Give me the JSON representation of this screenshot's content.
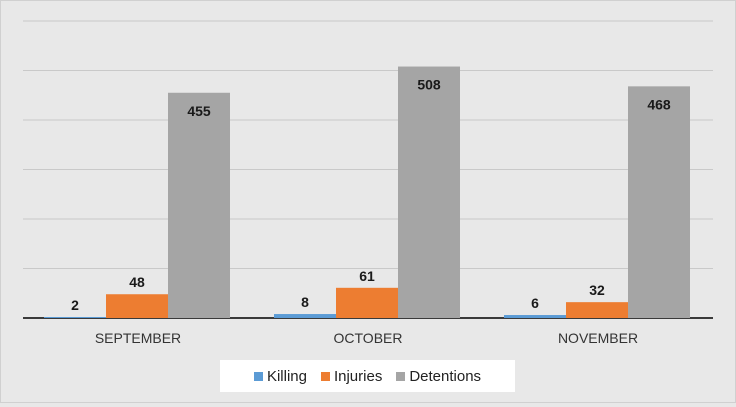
{
  "chart_data": {
    "type": "bar",
    "categories": [
      "SEPTEMBER",
      "OCTOBER",
      "NOVEMBER"
    ],
    "series": [
      {
        "name": "Killing",
        "color": "#5b9bd5",
        "values": [
          2,
          8,
          6
        ]
      },
      {
        "name": "Injuries",
        "color": "#ed7d31",
        "values": [
          48,
          61,
          32
        ]
      },
      {
        "name": "Detentions",
        "color": "#a5a5a5",
        "values": [
          455,
          508,
          468
        ]
      }
    ],
    "ylim": [
      0,
      600
    ],
    "grid": true,
    "legend_position": "bottom"
  }
}
